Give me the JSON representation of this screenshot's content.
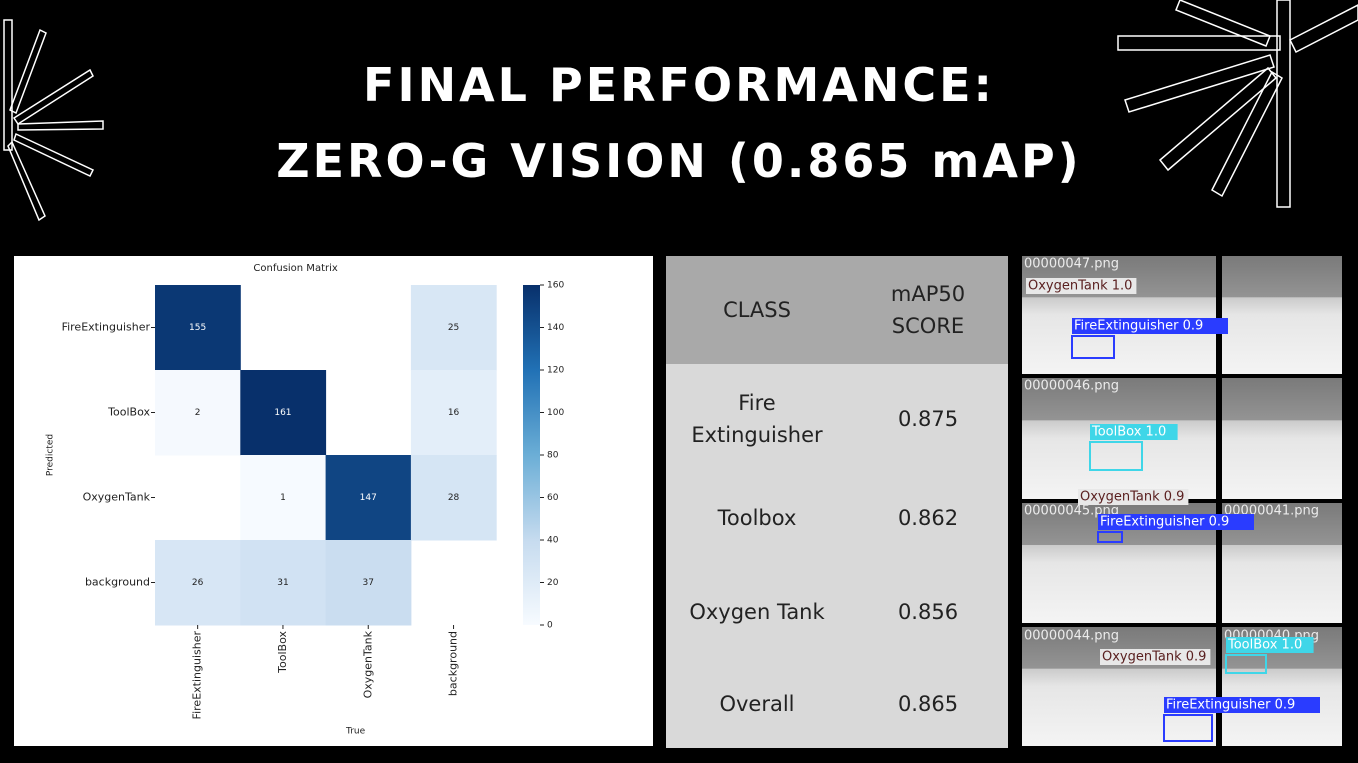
{
  "title": [
    "FINAL PERFORMANCE:",
    "ZERO-G VISION (0.865 mAP)"
  ],
  "chart_data": {
    "type": "heatmap",
    "title": "Confusion Matrix",
    "x_label": "True",
    "y_label": "Predicted",
    "x_categories": [
      "FireExtinguisher",
      "ToolBox",
      "OxygenTank",
      "background"
    ],
    "y_categories": [
      "FireExtinguisher",
      "ToolBox",
      "OxygenTank",
      "background"
    ],
    "values": [
      [
        155,
        null,
        null,
        25
      ],
      [
        2,
        161,
        null,
        16
      ],
      [
        null,
        1,
        147,
        28
      ],
      [
        26,
        31,
        37,
        null
      ]
    ],
    "colormap": "Blues",
    "clim": [
      0,
      160
    ],
    "cticks": [
      0,
      20,
      40,
      60,
      80,
      100,
      120,
      140,
      160
    ]
  },
  "table": {
    "header": [
      "CLASS",
      "mAP50 SCORE"
    ],
    "rows": [
      [
        "Fire Extinguisher",
        "0.875"
      ],
      [
        "Toolbox",
        "0.862"
      ],
      [
        "Oxygen Tank",
        "0.856"
      ],
      [
        "Overall",
        "0.865"
      ]
    ]
  },
  "image": {
    "files": [
      "00000047.png",
      "00000046.png",
      "00000045.png",
      "00000041.png",
      "00000044.png",
      "00000040.png"
    ],
    "detections": [
      "OxygenTank 1.0",
      "FireExtinguisher 0.9",
      "ToolBox 1.0",
      "OxygenTank 0.9",
      "FireExtinguisher 0.9",
      "OxygenTank 0.9",
      "ToolBox 1.0",
      "FireExtinguisher 0.9"
    ]
  }
}
